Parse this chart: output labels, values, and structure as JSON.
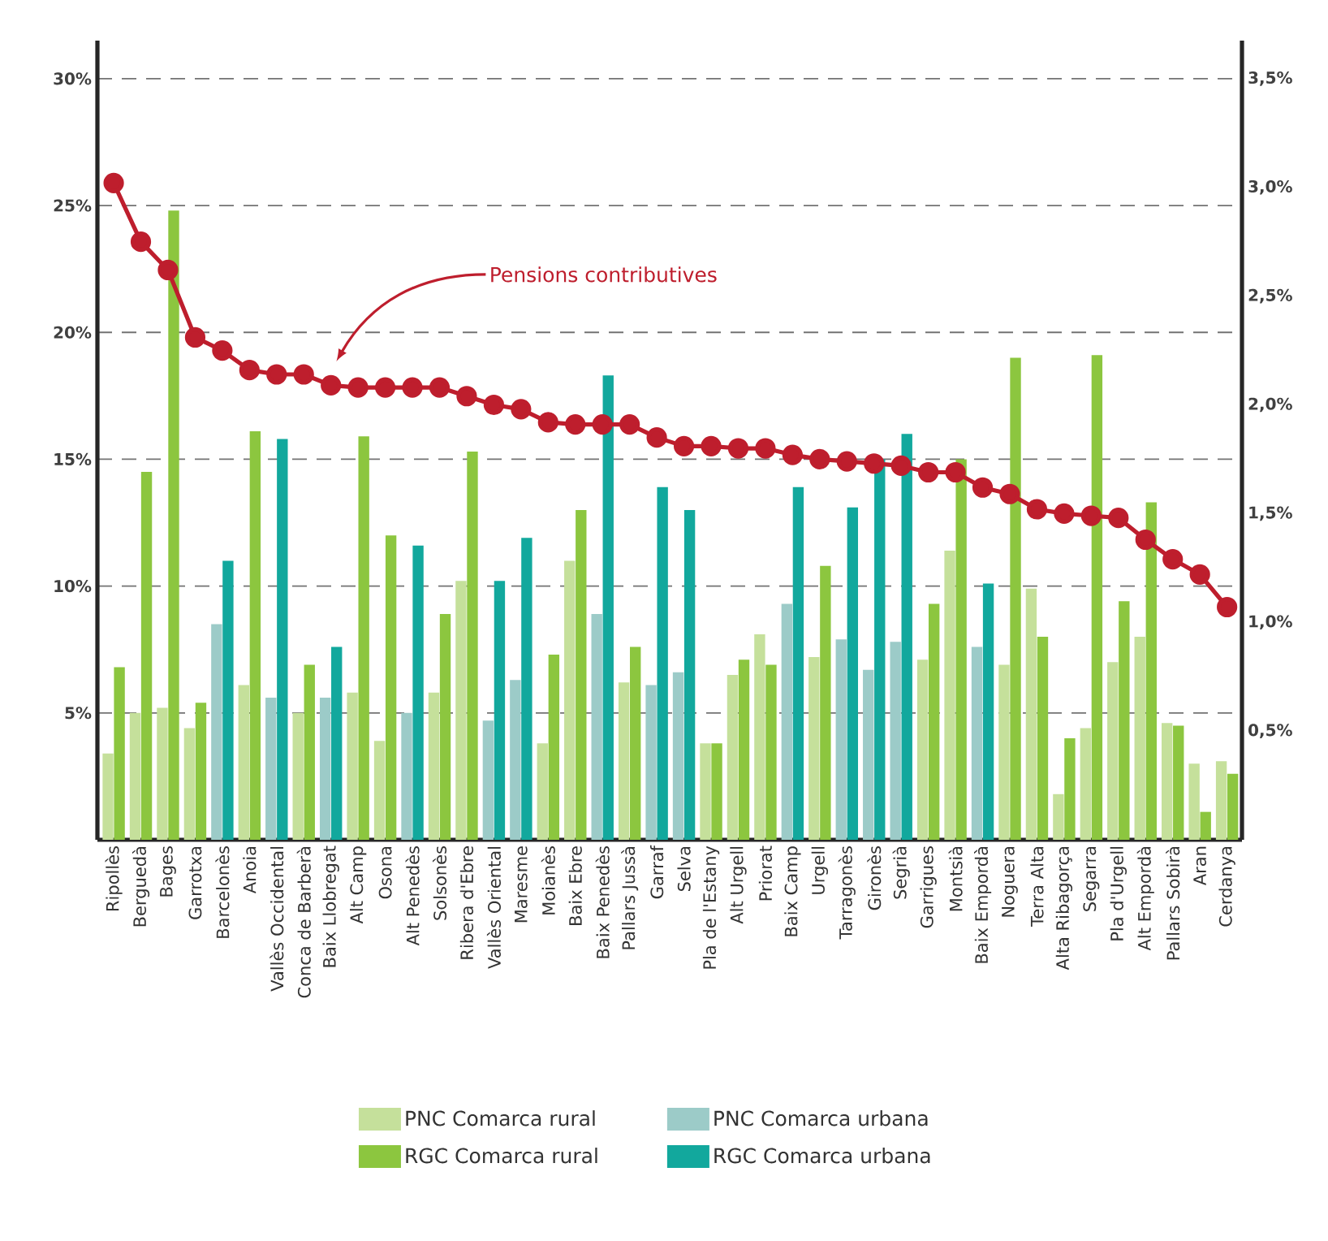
{
  "chart_data": {
    "type": "bar",
    "categories": [
      "Ripollès",
      "Berguedà",
      "Bages",
      "Garrotxa",
      "Barcelonès",
      "Anoia",
      "Vallès Occidental",
      "Conca de Barberà",
      "Baix Llobregat",
      "Alt Camp",
      "Osona",
      "Alt Penedès",
      "Solsonès",
      "Ribera d'Ebre",
      "Vallès Oriental",
      "Maresme",
      "Moianès",
      "Baix Ebre",
      "Baix Penedès",
      "Pallars Jussà",
      "Garraf",
      "Selva",
      "Pla de l'Estany",
      "Alt Urgell",
      "Priorat",
      "Baix Camp",
      "Urgell",
      "Tarragonès",
      "Gironès",
      "Segrià",
      "Garrigues",
      "Montsià",
      "Baix Empordà",
      "Noguera",
      "Terra Alta",
      "Alta Ribagorça",
      "Segarra",
      "Pla d'Urgell",
      "Alt Empordà",
      "Pallars Sobirà",
      "Aran",
      "Cerdanya"
    ],
    "series": [
      {
        "name": "PNC Comarca rural",
        "color": "#c5e09b",
        "values": [
          3.4,
          5.0,
          5.2,
          4.4,
          null,
          6.1,
          null,
          5.0,
          null,
          5.8,
          3.9,
          null,
          5.8,
          10.2,
          null,
          null,
          3.8,
          11.0,
          null,
          6.2,
          null,
          null,
          3.8,
          6.5,
          8.1,
          null,
          7.2,
          null,
          null,
          null,
          7.1,
          11.4,
          null,
          6.9,
          9.9,
          1.8,
          4.4,
          7.0,
          8.0,
          4.6,
          3.0,
          3.1
        ]
      },
      {
        "name": "PNC Comarca urbana",
        "color": "#9ccbc8",
        "values": [
          null,
          null,
          null,
          null,
          8.5,
          null,
          5.6,
          null,
          5.6,
          null,
          null,
          5.0,
          null,
          null,
          4.7,
          6.3,
          null,
          null,
          8.9,
          null,
          6.1,
          6.6,
          null,
          null,
          null,
          9.3,
          null,
          7.9,
          6.7,
          7.8,
          null,
          null,
          7.6,
          null,
          null,
          null,
          null,
          null,
          null,
          null,
          null,
          null
        ]
      },
      {
        "name": "RGC Comarca rural",
        "color": "#8cc63f",
        "values": [
          6.8,
          14.5,
          24.8,
          5.4,
          null,
          16.1,
          null,
          6.9,
          null,
          15.9,
          12.0,
          null,
          8.9,
          15.3,
          null,
          null,
          7.3,
          13.0,
          null,
          7.6,
          null,
          null,
          3.8,
          7.1,
          6.9,
          null,
          10.8,
          null,
          null,
          null,
          9.3,
          15.0,
          null,
          19.0,
          8.0,
          4.0,
          19.1,
          9.4,
          13.3,
          4.5,
          1.1,
          2.6
        ]
      },
      {
        "name": "RGC Comarca urbana",
        "color": "#12a89d",
        "values": [
          null,
          null,
          null,
          null,
          11.0,
          null,
          15.8,
          null,
          7.6,
          null,
          null,
          11.6,
          null,
          null,
          10.2,
          11.9,
          null,
          null,
          18.3,
          null,
          13.9,
          13.0,
          null,
          null,
          null,
          13.9,
          null,
          13.1,
          15.0,
          16.0,
          null,
          null,
          10.1,
          null,
          null,
          null,
          null,
          null,
          null,
          null,
          null,
          null
        ]
      },
      {
        "name": "Pensions contributives",
        "type": "line",
        "axis": "y2",
        "color": "#be1e2d",
        "marker": "circle",
        "line_style": "solid",
        "values": [
          3.02,
          2.75,
          2.62,
          2.31,
          2.25,
          2.16,
          2.14,
          2.14,
          2.09,
          2.08,
          2.08,
          2.08,
          2.08,
          2.04,
          2.0,
          1.98,
          1.92,
          1.91,
          1.91,
          1.91,
          1.85,
          1.81,
          1.81,
          1.8,
          1.8,
          1.77,
          1.75,
          1.74,
          1.73,
          1.72,
          1.69,
          1.69,
          1.62,
          1.59,
          1.52,
          1.5,
          1.49,
          1.48,
          1.38,
          1.29,
          1.22,
          1.07
        ]
      }
    ],
    "ylim": [
      0,
      31.5
    ],
    "yticks": [
      {
        "value": 5,
        "label": "5%"
      },
      {
        "value": 10,
        "label": "10%"
      },
      {
        "value": 15,
        "label": "15%"
      },
      {
        "value": 20,
        "label": "20%"
      },
      {
        "value": 25,
        "label": "25%"
      },
      {
        "value": 30,
        "label": "30%"
      }
    ],
    "y2lim": [
      0,
      3.675
    ],
    "y2ticks": [
      {
        "value": 0.5,
        "label": "0,5%"
      },
      {
        "value": 1.0,
        "label": "1,0%"
      },
      {
        "value": 1.5,
        "label": "1,5%"
      },
      {
        "value": 2.0,
        "label": "2,0%"
      },
      {
        "value": 2.5,
        "label": "2,5%"
      },
      {
        "value": 3.0,
        "label": "3,0%"
      },
      {
        "value": 3.5,
        "label": "3,5%"
      }
    ],
    "grid": "y",
    "legend": "bottom"
  }
}
